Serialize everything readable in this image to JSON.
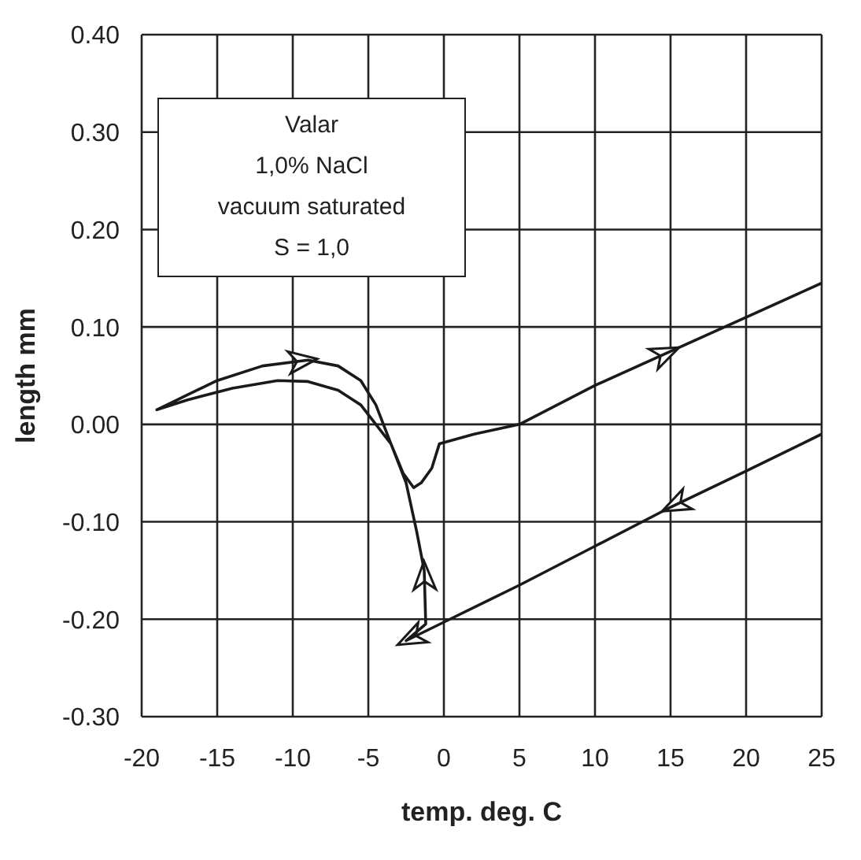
{
  "chart_data": {
    "type": "line",
    "xlabel": "temp. deg. C",
    "ylabel": "length mm",
    "annotations": [
      "Valar",
      "1,0% NaCl",
      "vacuum saturated",
      "S = 1,0"
    ],
    "xlim": [
      -20,
      25
    ],
    "xticks": [
      -20,
      -15,
      -10,
      -5,
      0,
      5,
      10,
      15,
      20,
      25
    ],
    "ylim": [
      -0.3,
      0.4
    ],
    "yticks": [
      {
        "value": -0.3,
        "label": "-0.30"
      },
      {
        "value": -0.2,
        "label": "-0.20"
      },
      {
        "value": -0.1,
        "label": "-0.10"
      },
      {
        "value": 0,
        "label": "0.00"
      },
      {
        "value": 0.1,
        "label": "0.10"
      },
      {
        "value": 0.2,
        "label": "0.20"
      },
      {
        "value": 0.3,
        "label": "0.30"
      },
      {
        "value": 0.4,
        "label": "0.40"
      }
    ],
    "grid": true,
    "legend": false,
    "marker": "none",
    "line_style": "solid",
    "series": [
      {
        "color": "#1a1a1a",
        "x": [
          25,
          20,
          15,
          10,
          5,
          0,
          -2.5,
          -1.2,
          -1.3,
          -1.8,
          -2.5,
          -3.5,
          -4.5,
          -5.5,
          -7,
          -9,
          -11,
          -14,
          -17,
          -19,
          -17,
          -15,
          -12,
          -9,
          -7,
          -5.5,
          -4.5,
          -3.5,
          -2.7,
          -2,
          -1.5,
          -0.8,
          -0.3,
          2,
          5,
          10,
          15,
          20,
          25
        ],
        "values": [
          -0.01,
          -0.048,
          -0.085,
          -0.125,
          -0.165,
          -0.203,
          -0.222,
          -0.205,
          -0.15,
          -0.11,
          -0.06,
          -0.02,
          0.0,
          0.02,
          0.035,
          0.044,
          0.045,
          0.037,
          0.025,
          0.015,
          0.03,
          0.045,
          0.06,
          0.066,
          0.06,
          0.045,
          0.02,
          -0.02,
          -0.05,
          -0.065,
          -0.06,
          -0.045,
          -0.02,
          -0.01,
          0.0,
          0.04,
          0.075,
          0.11,
          0.145
        ]
      }
    ]
  }
}
